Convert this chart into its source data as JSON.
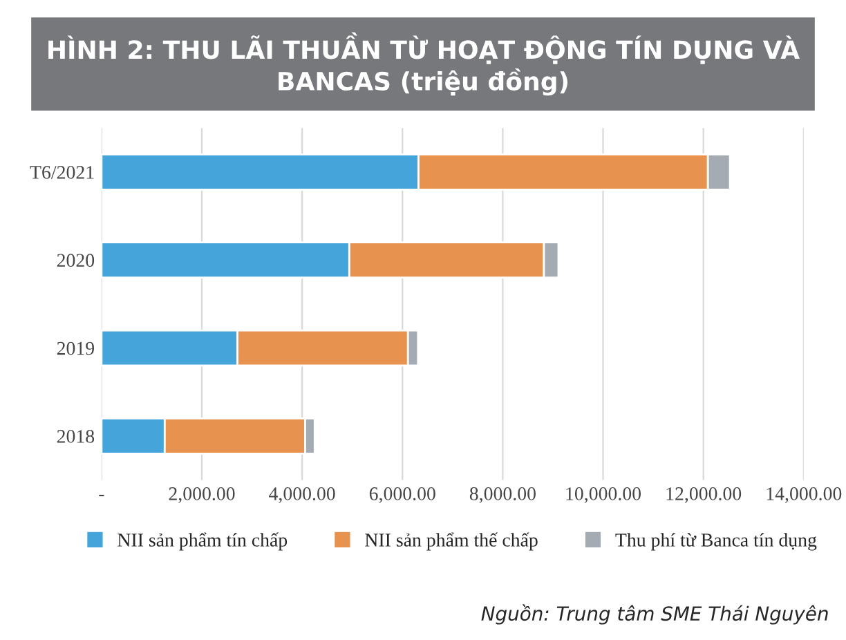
{
  "chart_data": {
    "type": "bar",
    "orientation": "horizontal",
    "stacked": true,
    "title": "HÌNH 2: THU LÃI THUẦN TỪ HOẠT ĐỘNG TÍN DỤNG VÀ BANCAS (triệu đồng)",
    "categories": [
      "T6/2021",
      "2020",
      "2019",
      "2018"
    ],
    "series": [
      {
        "name": "NII sản phẩm tín chấp",
        "color": "#45a5da",
        "values": [
          6320,
          4940,
          2710,
          1260
        ]
      },
      {
        "name": "NII sản phẩm thế chấp",
        "color": "#e8924f",
        "values": [
          5770,
          3880,
          3400,
          2800
        ]
      },
      {
        "name": "Thu phí từ Banca tín dụng",
        "color": "#a5abb2",
        "values": [
          440,
          290,
          200,
          190
        ]
      }
    ],
    "xlim": [
      0,
      14000
    ],
    "xticks": [
      {
        "value": 0,
        "label": "-"
      },
      {
        "value": 2000,
        "label": "2,000.00"
      },
      {
        "value": 4000,
        "label": "4,000.00"
      },
      {
        "value": 6000,
        "label": "6,000.00"
      },
      {
        "value": 8000,
        "label": "8,000.00"
      },
      {
        "value": 10000,
        "label": "10,000.00"
      },
      {
        "value": 12000,
        "label": "12,000.00"
      },
      {
        "value": 14000,
        "label": "14,000.00"
      }
    ],
    "grid": "x",
    "legend": "bottom",
    "annotations": [
      "Nguồn: Trung tâm SME Thái Nguyên"
    ]
  }
}
